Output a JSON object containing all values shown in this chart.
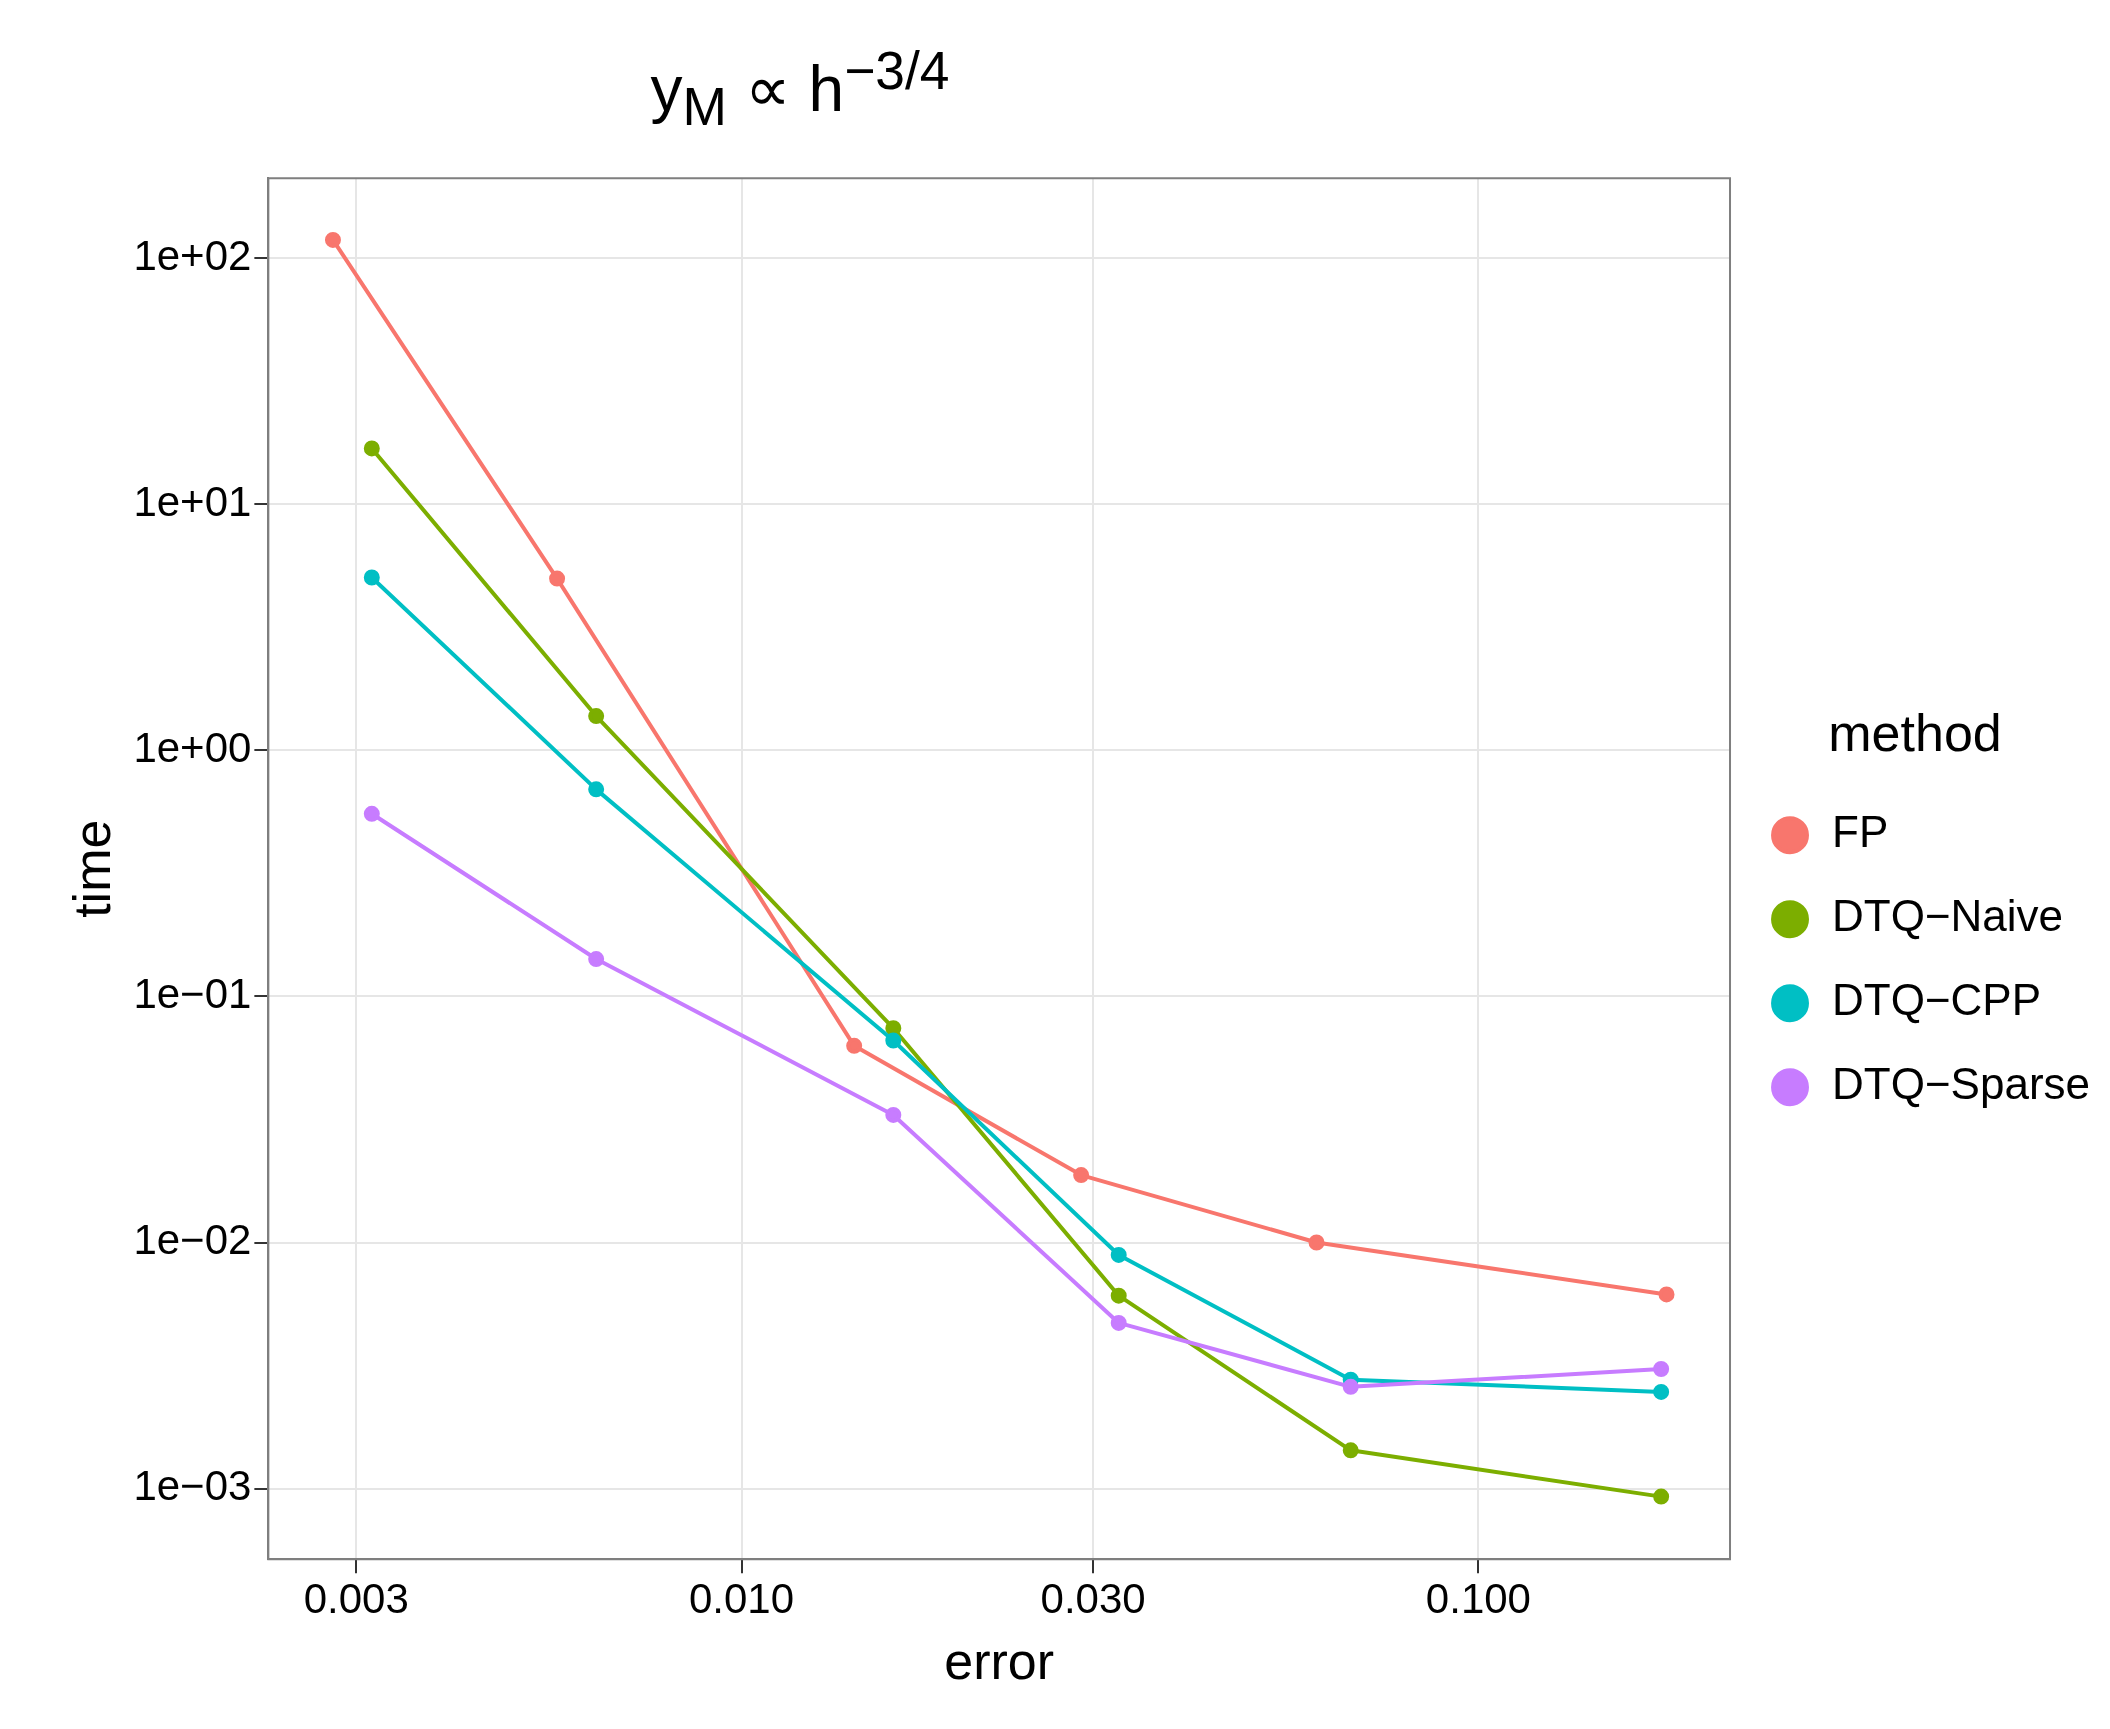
{
  "chart_data": {
    "type": "line",
    "title": "y$_{M}$ ∝ h$^{−3/4}$",
    "xlabel": "error",
    "ylabel": "time",
    "legend_title": "method",
    "legend": "right",
    "grid": true,
    "marker": "circle",
    "line_style": "solid",
    "log": "xy",
    "xlim": [
      0.00228,
      0.2195
    ],
    "ylim": [
      0.000516,
      212
    ],
    "xticks": [
      {
        "value": 0.003,
        "label": "0.003"
      },
      {
        "value": 0.01,
        "label": "0.010"
      },
      {
        "value": 0.03,
        "label": "0.030"
      },
      {
        "value": 0.1,
        "label": "0.100"
      }
    ],
    "yticks": [
      {
        "value": 0.001,
        "label": "1e−03"
      },
      {
        "value": 0.01,
        "label": "1e−02"
      },
      {
        "value": 0.1,
        "label": "1e−01"
      },
      {
        "value": 1,
        "label": "1e+00"
      },
      {
        "value": 10,
        "label": "1e+01"
      },
      {
        "value": 100,
        "label": "1e+02"
      }
    ],
    "series": [
      {
        "name": "FP",
        "color": "#f8766d",
        "x": [
          0.00279,
          0.00562,
          0.01422,
          0.0289,
          0.0603,
          0.18
        ],
        "values": [
          119,
          5.0,
          0.063,
          0.0188,
          0.01,
          0.00615
        ]
      },
      {
        "name": "DTQ−Naive",
        "color": "#7cae00",
        "x": [
          0.00315,
          0.00635,
          0.01607,
          0.0325,
          0.0671,
          0.177
        ],
        "values": [
          16.9,
          1.38,
          0.0743,
          0.00608,
          0.00143,
          0.000927
        ]
      },
      {
        "name": "DTQ−CPP",
        "color": "#00bfc4",
        "x": [
          0.00315,
          0.00635,
          0.01607,
          0.0325,
          0.0671,
          0.177
        ],
        "values": [
          5.05,
          0.695,
          0.0662,
          0.0089,
          0.00277,
          0.00247
        ]
      },
      {
        "name": "DTQ−Sparse",
        "color": "#c77cff",
        "x": [
          0.00315,
          0.00635,
          0.01607,
          0.0325,
          0.0671,
          0.177
        ],
        "values": [
          0.553,
          0.142,
          0.033,
          0.00471,
          0.00259,
          0.00306
        ]
      }
    ]
  }
}
